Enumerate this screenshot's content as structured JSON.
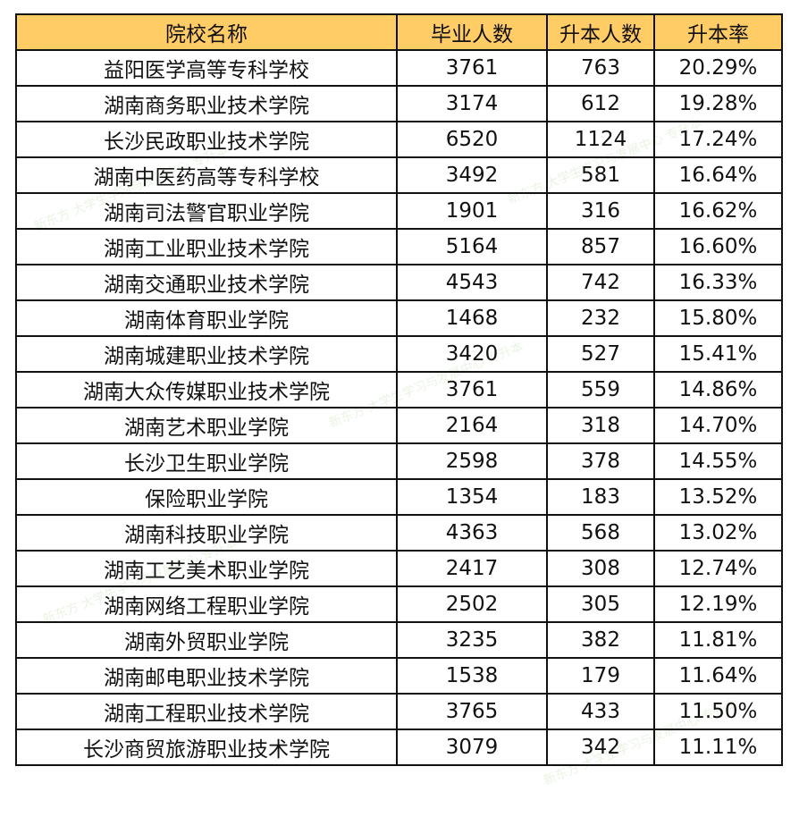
{
  "header": [
    "院校名称",
    "毕业人数",
    "升本人数",
    "升本率"
  ],
  "rows": [
    [
      "益阳医学高等专科学校",
      "3761",
      "763",
      "20.29%"
    ],
    [
      "湖南商务职业技术学院",
      "3174",
      "612",
      "19.28%"
    ],
    [
      "长沙民政职业技术学院",
      "6520",
      "1124",
      "17.24%"
    ],
    [
      "湖南中医药高等专科学校",
      "3492",
      "581",
      "16.64%"
    ],
    [
      "湖南司法警官职业学院",
      "1901",
      "316",
      "16.62%"
    ],
    [
      "湖南工业职业技术学院",
      "5164",
      "857",
      "16.60%"
    ],
    [
      "湖南交通职业技术学院",
      "4543",
      "742",
      "16.33%"
    ],
    [
      "湖南体育职业学院",
      "1468",
      "232",
      "15.80%"
    ],
    [
      "湖南城建职业技术学院",
      "3420",
      "527",
      "15.41%"
    ],
    [
      "湖南大众传媒职业技术学院",
      "3761",
      "559",
      "14.86%"
    ],
    [
      "湖南艺术职业学院",
      "2164",
      "318",
      "14.70%"
    ],
    [
      "长沙卫生职业学院",
      "2598",
      "378",
      "14.55%"
    ],
    [
      "保险职业学院",
      "1354",
      "183",
      "13.52%"
    ],
    [
      "湖南科技职业学院",
      "4363",
      "568",
      "13.02%"
    ],
    [
      "湖南工艺美术职业学院",
      "2417",
      "308",
      "12.74%"
    ],
    [
      "湖南网络工程职业学院",
      "2502",
      "305",
      "12.19%"
    ],
    [
      "湖南外贸职业学院",
      "3235",
      "382",
      "11.81%"
    ],
    [
      "湖南邮电职业技术学院",
      "1538",
      "179",
      "11.64%"
    ],
    [
      "湖南工程职业技术学院",
      "3765",
      "433",
      "11.50%"
    ],
    [
      "长沙商贸旅游职业技术学院",
      "3079",
      "342",
      "11.11%"
    ]
  ],
  "watermark": "新东方 大学生学习与发展中心 专升本"
}
